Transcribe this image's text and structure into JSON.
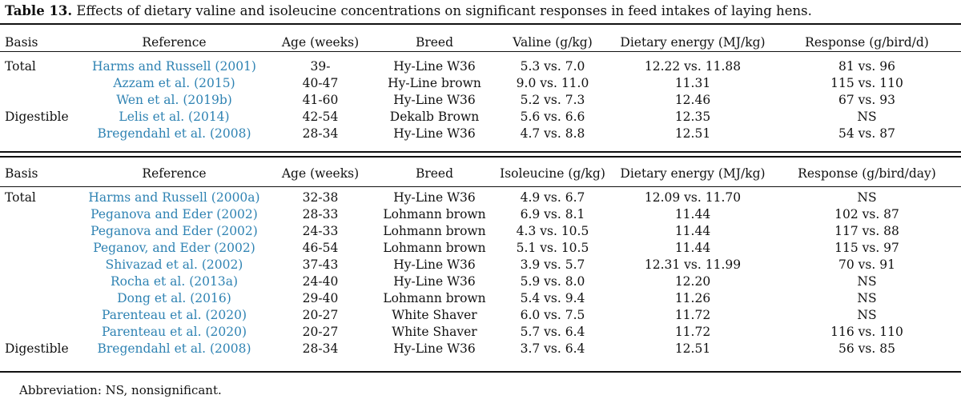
{
  "caption": {
    "label": "Table 13.",
    "text": "Effects of dietary valine and isoleucine concentrations on significant responses in feed intakes of laying hens."
  },
  "colors": {
    "link": "#2f83b3",
    "text": "#111111"
  },
  "valine_table": {
    "headers": [
      "Basis",
      "Reference",
      "Age (weeks)",
      "Breed",
      "Valine (g/kg)",
      "Dietary energy (MJ/kg)",
      "Response (g/bird/d)"
    ],
    "rows": [
      {
        "basis": "Total",
        "reference": "Harms and Russell (2001)",
        "age": "39-",
        "breed": "Hy-Line W36",
        "level": "5.3 vs. 7.0",
        "energy": "12.22 vs. 11.88",
        "response": "81 vs. 96"
      },
      {
        "basis": "",
        "reference": "Azzam et al. (2015)",
        "age": "40-47",
        "breed": "Hy-Line brown",
        "level": "9.0 vs. 11.0",
        "energy": "11.31",
        "response": "115 vs. 110"
      },
      {
        "basis": "",
        "reference": "Wen et al. (2019b)",
        "age": "41-60",
        "breed": "Hy-Line W36",
        "level": "5.2 vs. 7.3",
        "energy": "12.46",
        "response": "67 vs. 93"
      },
      {
        "basis": "Digestible",
        "reference": "Lelis et al. (2014)",
        "age": "42-54",
        "breed": "Dekalb Brown",
        "level": "5.6 vs. 6.6",
        "energy": "12.35",
        "response": "NS"
      },
      {
        "basis": "",
        "reference": "Bregendahl et al. (2008)",
        "age": "28-34",
        "breed": "Hy-Line W36",
        "level": "4.7 vs. 8.8",
        "energy": "12.51",
        "response": "54 vs. 87"
      }
    ]
  },
  "isoleucine_table": {
    "headers": [
      "Basis",
      "Reference",
      "Age (weeks)",
      "Breed",
      "Isoleucine (g/kg)",
      "Dietary energy (MJ/kg)",
      "Response (g/bird/day)"
    ],
    "rows": [
      {
        "basis": "Total",
        "reference": "Harms and Russell (2000a)",
        "age": "32-38",
        "breed": "Hy-Line W36",
        "level": "4.9 vs. 6.7",
        "energy": "12.09 vs. 11.70",
        "response": "NS"
      },
      {
        "basis": "",
        "reference": "Peganova and Eder (2002)",
        "age": "28-33",
        "breed": "Lohmann brown",
        "level": "6.9 vs. 8.1",
        "energy": "11.44",
        "response": "102 vs. 87"
      },
      {
        "basis": "",
        "reference": "Peganova and Eder (2002)",
        "age": "24-33",
        "breed": "Lohmann brown",
        "level": "4.3 vs. 10.5",
        "energy": "11.44",
        "response": "117 vs. 88"
      },
      {
        "basis": "",
        "reference": "Peganov, and Eder (2002)",
        "age": "46-54",
        "breed": "Lohmann brown",
        "level": "5.1 vs. 10.5",
        "energy": "11.44",
        "response": "115 vs. 97"
      },
      {
        "basis": "",
        "reference": "Shivazad et al. (2002)",
        "age": "37-43",
        "breed": "Hy-Line W36",
        "level": "3.9 vs. 5.7",
        "energy": "12.31 vs. 11.99",
        "response": "70 vs. 91"
      },
      {
        "basis": "",
        "reference": "Rocha et al. (2013a)",
        "age": "24-40",
        "breed": "Hy-Line W36",
        "level": "5.9 vs. 8.0",
        "energy": "12.20",
        "response": "NS"
      },
      {
        "basis": "",
        "reference": "Dong et al. (2016)",
        "age": "29-40",
        "breed": "Lohmann brown",
        "level": "5.4 vs. 9.4",
        "energy": "11.26",
        "response": "NS"
      },
      {
        "basis": "",
        "reference": "Parenteau et al. (2020)",
        "age": "20-27",
        "breed": "White Shaver",
        "level": "6.0 vs. 7.5",
        "energy": "11.72",
        "response": "NS"
      },
      {
        "basis": "",
        "reference": "Parenteau et al. (2020)",
        "age": "20-27",
        "breed": "White Shaver",
        "level": "5.7 vs. 6.4",
        "energy": "11.72",
        "response": "116 vs. 110"
      },
      {
        "basis": "Digestible",
        "reference": "Bregendahl et al. (2008)",
        "age": "28-34",
        "breed": "Hy-Line W36",
        "level": "3.7 vs. 6.4",
        "energy": "12.51",
        "response": "56 vs. 85"
      }
    ]
  },
  "footnote": "Abbreviation: NS, nonsignificant."
}
